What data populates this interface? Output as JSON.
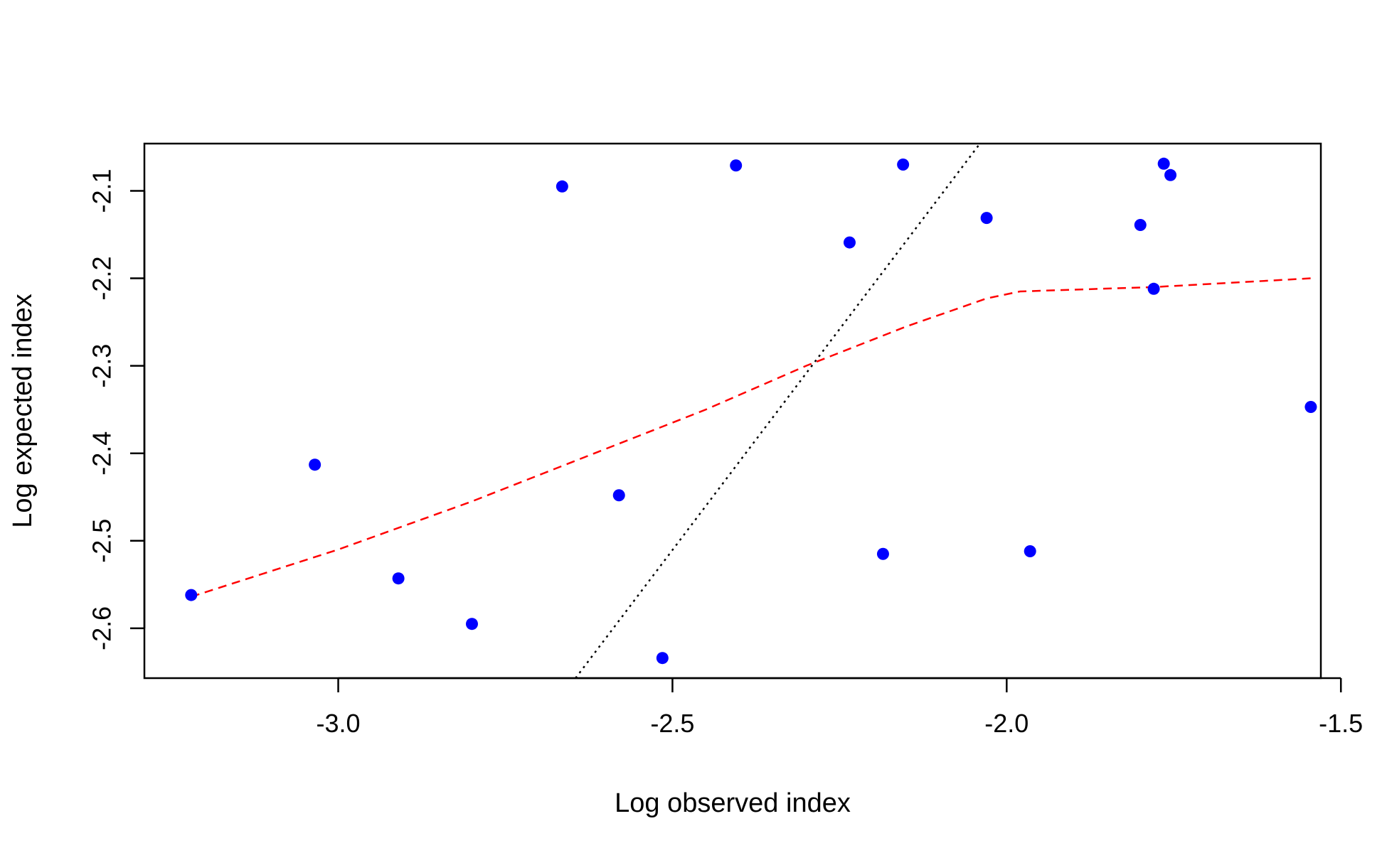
{
  "chart_data": {
    "type": "scatter",
    "title": "",
    "xlabel": "Log observed index",
    "ylabel": "Log expected index",
    "xlim": [
      -3.29,
      -1.53
    ],
    "ylim": [
      -2.657,
      -2.046
    ],
    "x_ticks": [
      -3.0,
      -2.5,
      -2.0,
      -1.5
    ],
    "x_tick_labels": [
      "-3.0",
      "-2.5",
      "-2.0",
      "-1.5"
    ],
    "y_ticks": [
      -2.1,
      -2.2,
      -2.3,
      -2.4,
      -2.5,
      -2.6
    ],
    "y_tick_labels": [
      "-2.1",
      "-2.2",
      "-2.3",
      "-2.4",
      "-2.5",
      "-2.6"
    ],
    "grid": false,
    "legend": "none",
    "points": {
      "color": "#0000ff",
      "x": [
        -3.22,
        -3.035,
        -2.91,
        -2.8,
        -2.665,
        -2.58,
        -2.515,
        -2.405,
        -2.235,
        -2.185,
        -2.155,
        -2.03,
        -1.965,
        -1.8,
        -1.78,
        -1.765,
        -1.755,
        -1.545
      ],
      "y": [
        -2.562,
        -2.413,
        -2.543,
        -2.595,
        -2.095,
        -2.448,
        -2.634,
        -2.071,
        -2.159,
        -2.515,
        -2.07,
        -2.131,
        -2.512,
        -2.139,
        -2.212,
        -2.069,
        -2.082,
        -2.347
      ]
    },
    "lines": [
      {
        "style": "dotted",
        "color": "#000000",
        "x": [
          -2.645,
          -2.04
        ],
        "y": [
          -2.657,
          -2.046
        ]
      },
      {
        "style": "dashed",
        "color": "#ff0000",
        "x": [
          -3.22,
          -3.0,
          -2.8,
          -2.6,
          -2.45,
          -2.3,
          -2.15,
          -2.03,
          -1.98,
          -1.78,
          -1.545
        ],
        "y": [
          -2.564,
          -2.51,
          -2.455,
          -2.395,
          -2.35,
          -2.3,
          -2.255,
          -2.223,
          -2.215,
          -2.21,
          -2.2
        ]
      }
    ]
  }
}
